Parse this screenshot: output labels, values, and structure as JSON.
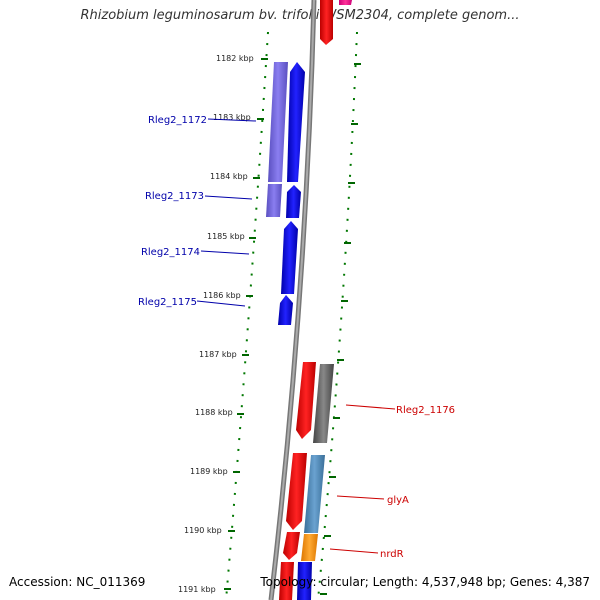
{
  "title": "Rhizobium leguminosarum bv. trifolii WSM2304, complete genom...",
  "footer": {
    "accession": "Accession: NC_011369",
    "summary": "Topology: circular; Length: 4,537,948 bp; Genes: 4,387"
  },
  "kbp_ticks": [
    "1182 kbp",
    "1183 kbp",
    "1184 kbp",
    "1185 kbp",
    "1186 kbp",
    "1187 kbp",
    "1188 kbp",
    "1189 kbp",
    "1190 kbp",
    "1191 kbp"
  ],
  "gene_labels": {
    "left": [
      "Rleg2_1172",
      "Rleg2_1173",
      "Rleg2_1174",
      "Rleg2_1175"
    ],
    "right": [
      "Rleg2_1176",
      "glyA",
      "nrdR"
    ]
  },
  "colors": {
    "reverse_strand": "#0000ee",
    "reverse_strand_light": "#6a5acd",
    "forward_strand": "#ee0000",
    "gray_feature": "#555555",
    "steel_feature": "#4682b4",
    "orange_feature": "#ff8c00",
    "backbone": "#888888",
    "tick_green": "#006600",
    "left_label": "#0000aa",
    "right_label": "#cc0000"
  }
}
